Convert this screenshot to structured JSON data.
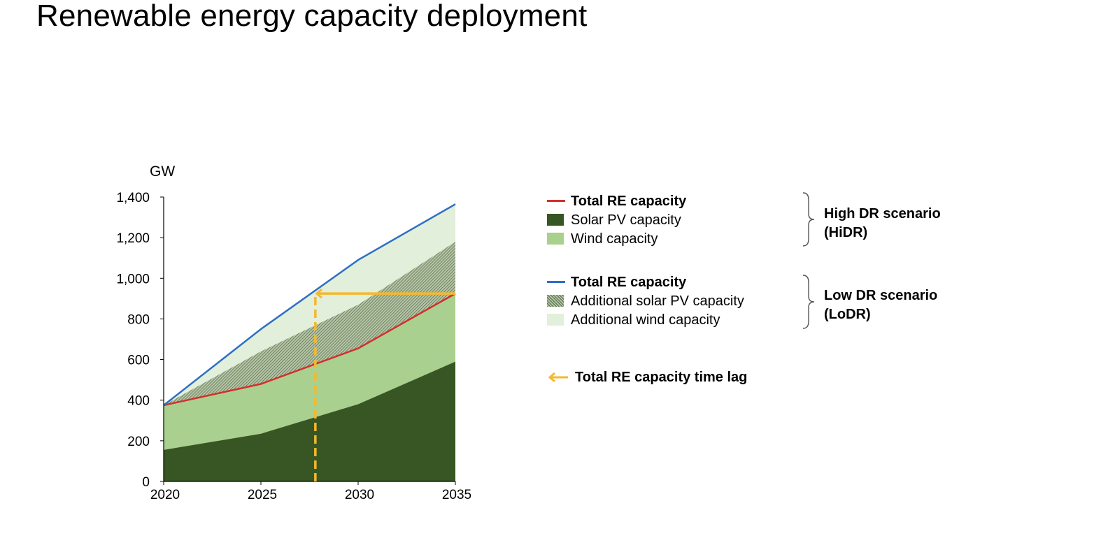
{
  "title": "Renewable energy capacity deployment",
  "chart_data": {
    "type": "area",
    "ylabel": "GW",
    "ylim": [
      0,
      1400
    ],
    "yticks": [
      0,
      200,
      400,
      600,
      800,
      1000,
      1200,
      1400
    ],
    "ytick_labels": [
      "0",
      "200",
      "400",
      "600",
      "800",
      "1,000",
      "1,200",
      "1,400"
    ],
    "x": [
      2020,
      2025,
      2030,
      2035
    ],
    "xtick_labels": [
      "2020",
      "2025",
      "2030",
      "2035"
    ],
    "series": [
      {
        "name": "Solar PV capacity",
        "scenario": "HiDR",
        "kind": "area",
        "values": [
          155,
          235,
          380,
          590
        ]
      },
      {
        "name": "Wind capacity",
        "scenario": "HiDR",
        "kind": "area",
        "values": [
          220,
          245,
          275,
          335
        ]
      },
      {
        "name": "Total RE capacity",
        "scenario": "HiDR",
        "kind": "line",
        "values": [
          375,
          480,
          655,
          925
        ]
      },
      {
        "name": "Additional solar PV capacity",
        "scenario": "LoDR",
        "kind": "area",
        "values": [
          0,
          160,
          215,
          255
        ]
      },
      {
        "name": "Additional wind capacity",
        "scenario": "LoDR",
        "kind": "area",
        "values": [
          0,
          110,
          220,
          185
        ]
      },
      {
        "name": "Total RE capacity",
        "scenario": "LoDR",
        "kind": "line",
        "values": [
          375,
          750,
          1090,
          1365
        ]
      }
    ],
    "time_lag": {
      "name": "Total RE capacity time lag",
      "year": 2027.8,
      "value": 925,
      "to_year": 2035
    }
  },
  "legend": {
    "group_hidr": [
      {
        "label": "Total RE capacity",
        "swatch": "line",
        "color": "#d32f2f",
        "bold": true
      },
      {
        "label": "Solar PV capacity",
        "swatch": "box",
        "color": "#375623",
        "bold": false
      },
      {
        "label": "Wind capacity",
        "swatch": "box",
        "color": "#a9d08e",
        "bold": false
      }
    ],
    "group_lodr": [
      {
        "label": "Total RE capacity",
        "swatch": "line",
        "color": "#2e6fc4",
        "bold": true
      },
      {
        "label": "Additional solar PV capacity",
        "swatch": "hatch",
        "color": "#375623",
        "bold": false
      },
      {
        "label": "Additional wind capacity",
        "swatch": "box",
        "color": "#e2efda",
        "bold": false
      }
    ],
    "time_lag_label": "Total RE capacity time lag",
    "time_lag_color": "#f5b82e",
    "scenario_hidr": [
      "High DR scenario",
      "(HiDR)"
    ],
    "scenario_lodr": [
      "Low DR scenario",
      "(LoDR)"
    ]
  },
  "colors": {
    "solar": "#375623",
    "wind": "#a9d08e",
    "add_solar_bg": "#a9b89b",
    "add_wind": "#e2efda",
    "hidr_line": "#d32f2f",
    "lodr_line": "#2e6fc4",
    "lag": "#f5b82e",
    "axis": "#000000"
  }
}
